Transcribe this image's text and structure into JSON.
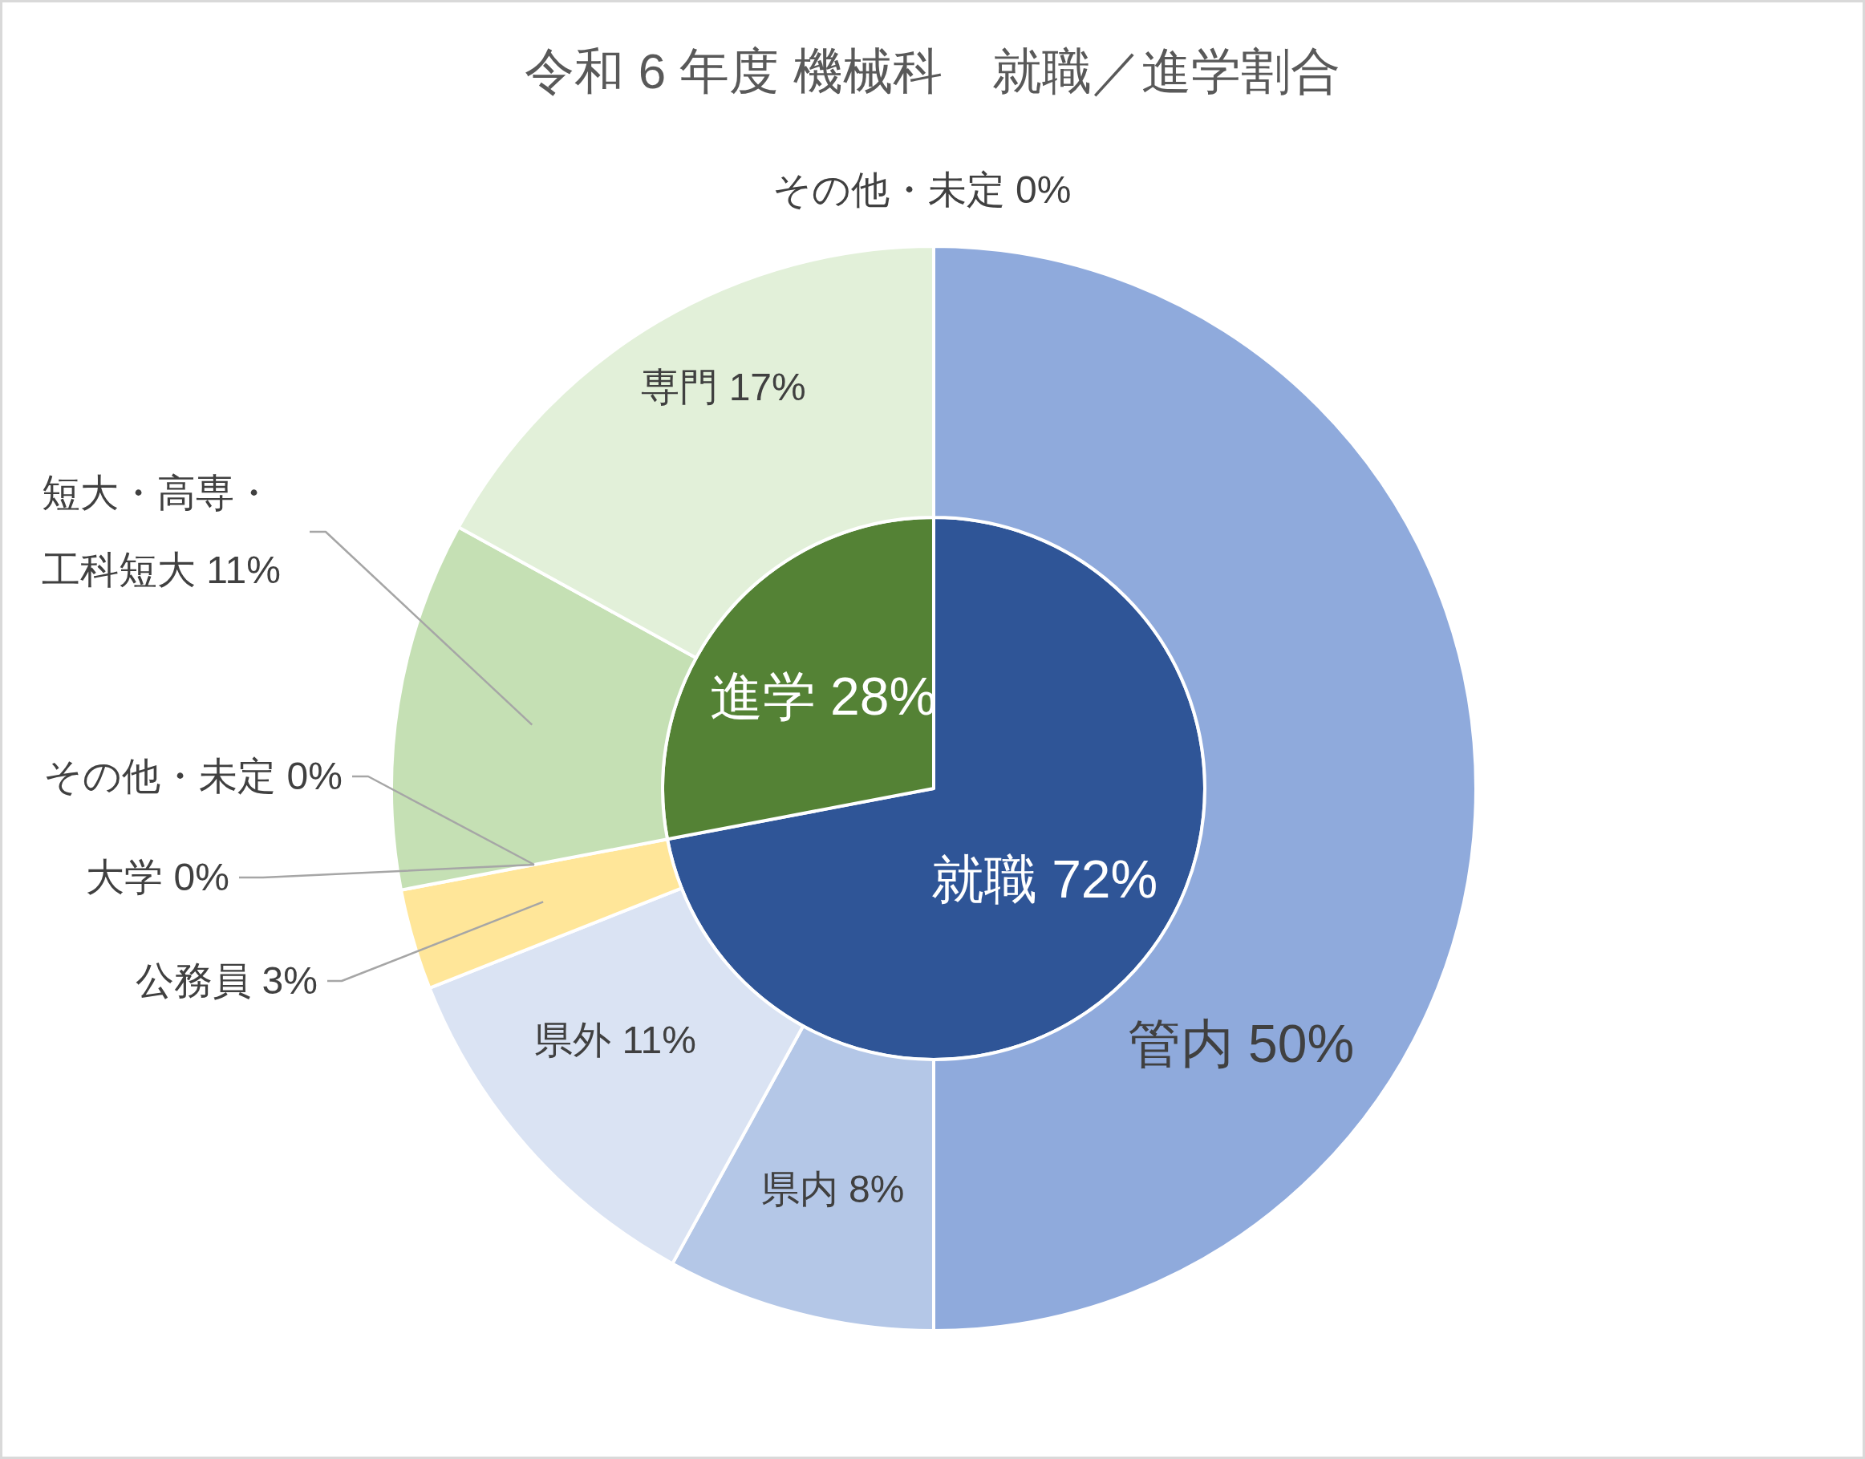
{
  "chart_data": [
    {
      "type": "pie",
      "title": "令和 6 年度 機械科　就職／進学割合",
      "categories": [
        "就職",
        "進学"
      ],
      "values": [
        72,
        28
      ],
      "colors": [
        "#2f5597",
        "#548235"
      ],
      "value_labels": [
        "72%",
        "28%"
      ]
    },
    {
      "type": "donut",
      "categories": [
        "管内",
        "県内",
        "県外",
        "公務員",
        "その他・未定",
        "大学",
        "短大・高専・工科短大",
        "専門",
        "その他・未定"
      ],
      "values": [
        50,
        8,
        11,
        3,
        0,
        0,
        11,
        17,
        0
      ],
      "colors": [
        "#8faadc",
        "#b4c7e7",
        "#dae3f3",
        "#ffe699",
        null,
        null,
        "#c5e0b4",
        "#e2f0d9",
        null
      ],
      "value_labels": [
        "50%",
        "8%",
        "11%",
        "3%",
        "0%",
        "0%",
        "11%",
        "17%",
        "0%"
      ]
    }
  ]
}
